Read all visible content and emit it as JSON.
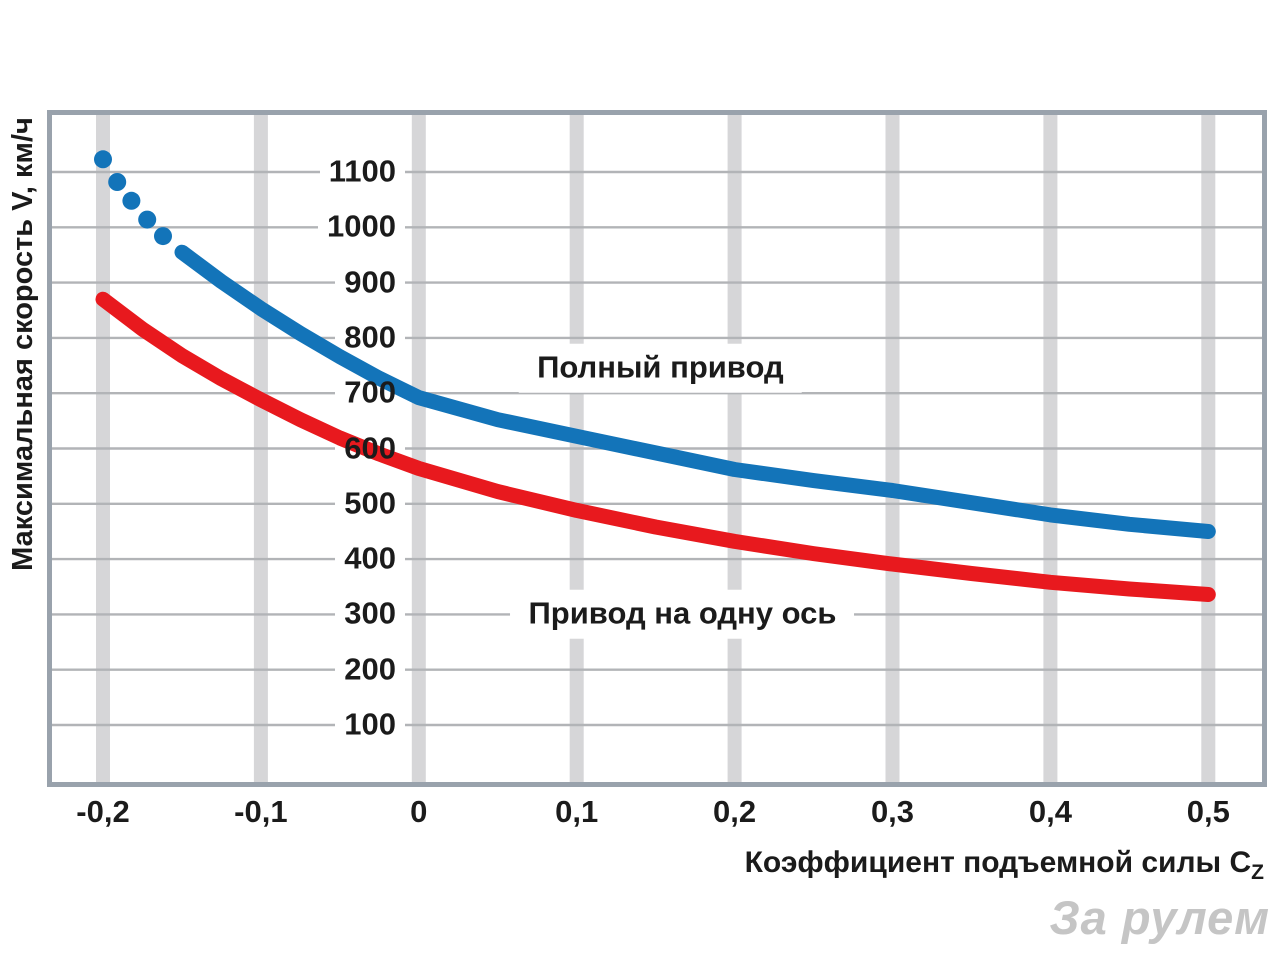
{
  "page": {
    "watermark": "За рулем",
    "watermark_color": "#c5c5c5"
  },
  "chart_data": {
    "type": "line",
    "title": "",
    "xlabel_main": "Коэффициент подъемной силы C",
    "xlabel_sub": "Z",
    "ylabel": "Максимальная скорость V, км/ч",
    "grid": true,
    "legend": "inline-labels",
    "xlim": [
      -0.232,
      0.533
    ],
    "ylim": [
      0,
      1200
    ],
    "colors": {
      "v_band": "#d6d6d8",
      "h_line": "#b2b4b7",
      "frame": "#99a2ac"
    },
    "x_ticks": [
      {
        "value": -0.2,
        "label": "-0,2"
      },
      {
        "value": -0.1,
        "label": "-0,1"
      },
      {
        "value": 0,
        "label": "0"
      },
      {
        "value": 0.1,
        "label": "0,1"
      },
      {
        "value": 0.2,
        "label": "0,2"
      },
      {
        "value": 0.3,
        "label": "0,3"
      },
      {
        "value": 0.4,
        "label": "0,4"
      },
      {
        "value": 0.5,
        "label": "0,5"
      }
    ],
    "y_ticks": [
      {
        "value": 1100,
        "label": "1100"
      },
      {
        "value": 1000,
        "label": "1000"
      },
      {
        "value": 900,
        "label": "900"
      },
      {
        "value": 800,
        "label": "800"
      },
      {
        "value": 700,
        "label": "700"
      },
      {
        "value": 600,
        "label": "600"
      },
      {
        "value": 500,
        "label": "500"
      },
      {
        "value": 400,
        "label": "400"
      },
      {
        "value": 300,
        "label": "300"
      },
      {
        "value": 200,
        "label": "200"
      },
      {
        "value": 100,
        "label": "100"
      }
    ],
    "series": [
      {
        "name": "Полный привод",
        "color": "#1374b9",
        "dotted_prefix": [
          [
            -0.2,
            1123
          ],
          [
            -0.191,
            1082
          ],
          [
            -0.182,
            1048
          ],
          [
            -0.172,
            1014
          ],
          [
            -0.162,
            984
          ]
        ],
        "points": [
          [
            -0.15,
            955
          ],
          [
            -0.125,
            902
          ],
          [
            -0.1,
            853
          ],
          [
            -0.075,
            808
          ],
          [
            -0.05,
            766
          ],
          [
            -0.025,
            727
          ],
          [
            0.0,
            692
          ],
          [
            0.05,
            652
          ],
          [
            0.1,
            622
          ],
          [
            0.15,
            592
          ],
          [
            0.2,
            562
          ],
          [
            0.25,
            542
          ],
          [
            0.3,
            524
          ],
          [
            0.35,
            502
          ],
          [
            0.4,
            480
          ],
          [
            0.45,
            463
          ],
          [
            0.5,
            450
          ]
        ],
        "label": {
          "text": "Полный привод",
          "x": 0.153,
          "y": 745
        }
      },
      {
        "name": "Привод на одну ось",
        "color": "#e8191e",
        "points": [
          [
            -0.2,
            870
          ],
          [
            -0.175,
            816
          ],
          [
            -0.15,
            768
          ],
          [
            -0.125,
            726
          ],
          [
            -0.1,
            688
          ],
          [
            -0.075,
            652
          ],
          [
            -0.05,
            619
          ],
          [
            -0.025,
            590
          ],
          [
            0.0,
            564
          ],
          [
            0.05,
            522
          ],
          [
            0.1,
            488
          ],
          [
            0.15,
            458
          ],
          [
            0.2,
            432
          ],
          [
            0.25,
            410
          ],
          [
            0.3,
            391
          ],
          [
            0.35,
            374
          ],
          [
            0.4,
            358
          ],
          [
            0.45,
            346
          ],
          [
            0.5,
            336
          ]
        ],
        "label": {
          "text": "Привод на одну ось",
          "x": 0.167,
          "y": 300
        }
      }
    ]
  }
}
